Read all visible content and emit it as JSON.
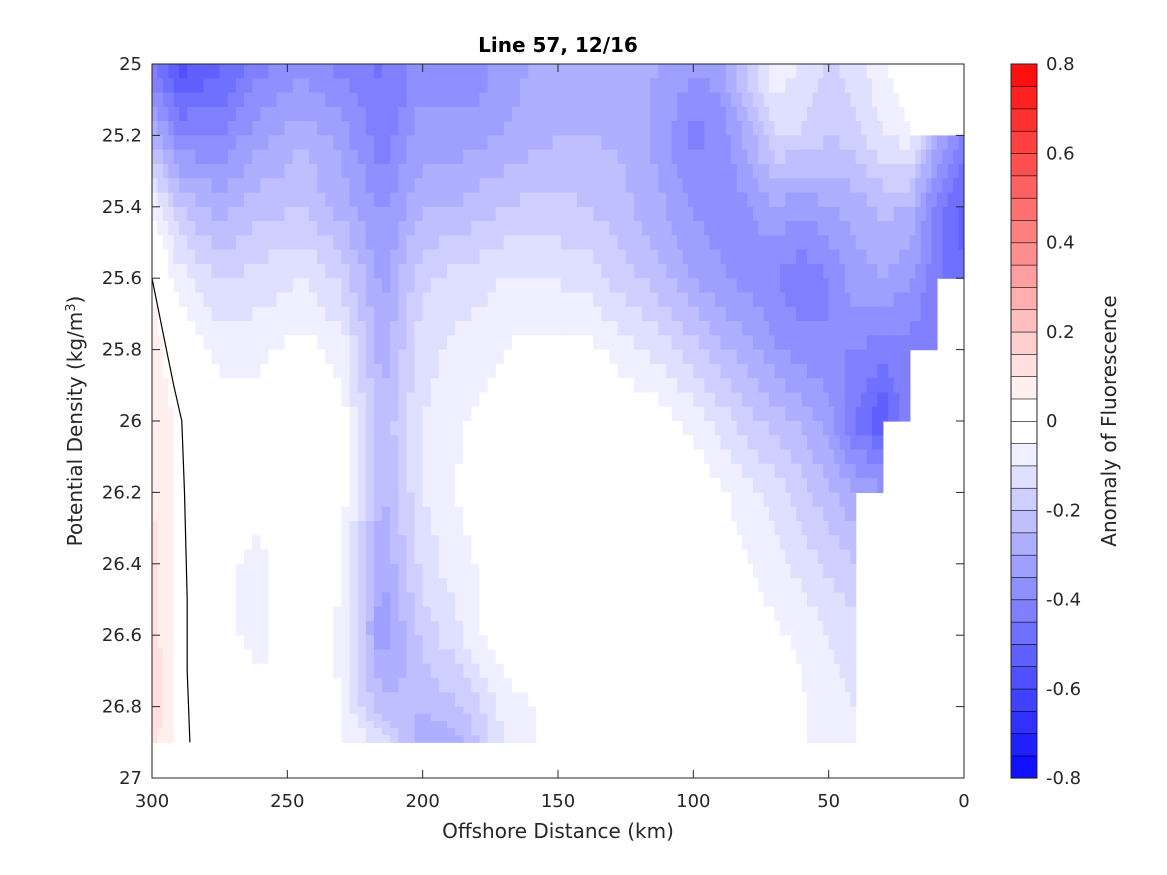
{
  "chart_data": {
    "type": "heatmap",
    "subtype": "filled-contour",
    "title": "Line 57, 12/16",
    "xlabel": "Offshore Distance (km)",
    "ylabel_main": "Potential Density (kg/m",
    "ylabel_sup": "3",
    "ylabel_end": ")",
    "xlim": [
      300,
      0
    ],
    "x_reversed": true,
    "ylim": [
      25,
      27
    ],
    "y_reversed": true,
    "xticks": [
      "300",
      "250",
      "200",
      "150",
      "100",
      "50",
      "0"
    ],
    "yticks": [
      "25",
      "25.2",
      "25.4",
      "25.6",
      "25.8",
      "26",
      "26.2",
      "26.4",
      "26.6",
      "26.8",
      "27"
    ],
    "colorbar": {
      "label": "Anomaly of Fluorescence",
      "range": [
        -0.8,
        0.8
      ],
      "levels_step": 0.05,
      "ticks": [
        "0.8",
        "0.6",
        "0.4",
        "0.2",
        "0",
        "-0.2",
        "-0.4",
        "-0.6",
        "-0.8"
      ],
      "colormap": {
        "negative": "#0000ff",
        "zero": "#ffffff",
        "positive": "#ff0000"
      }
    },
    "data_extent": {
      "x_max": 300,
      "y_min": 25,
      "y_max": 26.9
    },
    "zero_contour_line": {
      "x": [
        300,
        296,
        292,
        289,
        288,
        287,
        287,
        286
      ],
      "y": [
        25.6,
        25.75,
        25.9,
        26.0,
        26.2,
        26.5,
        26.7,
        26.9
      ]
    },
    "field": {
      "x": [
        300,
        290,
        275,
        260,
        245,
        230,
        215,
        200,
        185,
        170,
        155,
        140,
        125,
        110,
        100,
        90,
        80,
        70,
        60,
        50,
        40,
        30,
        20,
        10,
        0
      ],
      "y": [
        25.0,
        25.2,
        25.4,
        25.6,
        25.8,
        26.0,
        26.2,
        26.4,
        26.6,
        26.8,
        26.9
      ],
      "z": [
        [
          -0.45,
          -0.58,
          -0.52,
          -0.42,
          -0.38,
          -0.42,
          -0.46,
          -0.38,
          -0.4,
          -0.33,
          -0.28,
          -0.26,
          -0.28,
          -0.3,
          -0.34,
          -0.32,
          -0.18,
          -0.06,
          -0.1,
          -0.16,
          -0.12,
          -0.06,
          0.02,
          null,
          null
        ],
        [
          -0.26,
          -0.4,
          -0.4,
          -0.32,
          -0.26,
          -0.32,
          -0.44,
          -0.32,
          -0.33,
          -0.3,
          -0.26,
          -0.25,
          -0.26,
          -0.34,
          -0.42,
          -0.38,
          -0.28,
          -0.15,
          -0.15,
          -0.2,
          -0.17,
          -0.1,
          -0.07,
          -0.28,
          -0.42
        ],
        [
          -0.05,
          -0.2,
          -0.27,
          -0.22,
          -0.2,
          -0.27,
          -0.36,
          -0.26,
          -0.24,
          -0.2,
          -0.18,
          -0.2,
          -0.24,
          -0.3,
          -0.36,
          -0.38,
          -0.36,
          -0.3,
          -0.34,
          -0.3,
          -0.28,
          -0.24,
          -0.25,
          -0.42,
          -0.52
        ],
        [
          0.05,
          -0.08,
          -0.16,
          -0.13,
          -0.1,
          -0.16,
          -0.32,
          -0.16,
          -0.13,
          -0.1,
          -0.1,
          -0.12,
          -0.18,
          -0.24,
          -0.3,
          -0.34,
          -0.37,
          -0.4,
          -0.44,
          -0.4,
          -0.32,
          -0.3,
          -0.34,
          -0.44,
          -0.5
        ],
        [
          0.08,
          0.0,
          -0.07,
          -0.06,
          -0.03,
          -0.07,
          -0.28,
          -0.12,
          -0.08,
          -0.05,
          -0.03,
          -0.03,
          -0.08,
          -0.13,
          -0.18,
          -0.24,
          -0.28,
          -0.34,
          -0.38,
          -0.4,
          -0.4,
          -0.42,
          -0.42,
          -0.44,
          null
        ],
        [
          0.1,
          0.04,
          -0.02,
          -0.03,
          0.0,
          -0.02,
          -0.24,
          -0.1,
          -0.05,
          -0.02,
          0.0,
          0.0,
          0.0,
          -0.03,
          -0.07,
          -0.12,
          -0.18,
          -0.22,
          -0.26,
          -0.32,
          -0.46,
          -0.55,
          -0.4,
          null,
          null
        ],
        [
          0.1,
          0.04,
          -0.02,
          -0.04,
          0.0,
          -0.02,
          -0.26,
          -0.1,
          -0.04,
          0.0,
          0.0,
          0.0,
          0.0,
          0.0,
          0.0,
          -0.04,
          -0.08,
          -0.12,
          -0.18,
          -0.24,
          -0.3,
          -0.34,
          null,
          null,
          null
        ],
        [
          0.12,
          0.04,
          -0.04,
          -0.06,
          0.0,
          -0.04,
          -0.3,
          -0.13,
          -0.06,
          -0.02,
          0.0,
          0.0,
          0.0,
          0.0,
          0.0,
          -0.02,
          -0.05,
          -0.08,
          -0.12,
          -0.16,
          -0.2,
          null,
          null,
          null,
          null
        ],
        [
          0.12,
          0.04,
          -0.04,
          -0.06,
          -0.02,
          -0.06,
          -0.34,
          -0.18,
          -0.1,
          0.0,
          0.0,
          0.0,
          0.0,
          0.0,
          0.0,
          0.0,
          -0.02,
          -0.04,
          -0.06,
          -0.1,
          -0.12,
          null,
          null,
          null,
          null
        ],
        [
          0.14,
          0.04,
          -0.02,
          -0.04,
          0.0,
          -0.05,
          -0.24,
          -0.24,
          -0.2,
          -0.08,
          -0.04,
          0.0,
          0.0,
          0.0,
          0.0,
          0.0,
          0.0,
          -0.02,
          -0.04,
          -0.08,
          -0.1,
          null,
          null,
          null,
          null
        ],
        [
          0.12,
          0.03,
          0.0,
          -0.02,
          -0.02,
          -0.04,
          -0.12,
          -0.3,
          -0.26,
          -0.1,
          -0.04,
          0.0,
          0.0,
          0.0,
          0.0,
          0.0,
          0.0,
          -0.02,
          -0.04,
          -0.08,
          -0.1,
          null,
          null,
          null,
          null
        ]
      ]
    }
  }
}
